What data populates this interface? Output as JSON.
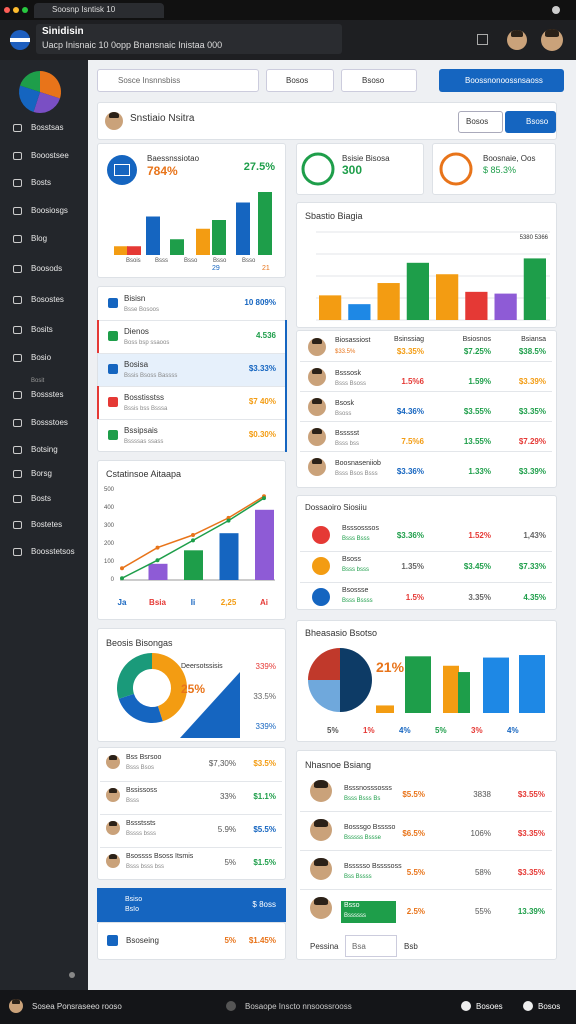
{
  "browser": {
    "tab": "Soosnp Isntisk 10"
  },
  "header": {
    "title": "Sinidisin",
    "subtitle": "Uacp Inisnaic 10 0opp Bnansnaic Inistaa 000"
  },
  "sidebar": {
    "items": [
      "Bosstsas",
      "Booostsee",
      "Bosts",
      "Boosiosgs",
      "Blog",
      "Boosods",
      "Bosostes",
      "Bosits",
      "Bosio",
      "Bossstes",
      "Bossstoes",
      "Botsing",
      "Borsg",
      "Bosts",
      "Bostetes",
      "Boosstetsos"
    ],
    "small": "Bosit"
  },
  "toolbar": {
    "search": "Sosce Insnnsbiss",
    "filter1": "Bosos",
    "filter2": "Bsoso",
    "button": "Boossnonoossnsaoss"
  },
  "profile": {
    "name": "Snstiaio Nsitra",
    "btn1": "Bosos",
    "btn2": "Bsoso"
  },
  "kpi": {
    "title": "Baessnssiotao",
    "value": "784%",
    "change": "27.5%",
    "ylim": [
      0,
      80
    ],
    "bars": [
      {
        "value": 10,
        "color": "#f39c12"
      },
      {
        "value": 10,
        "color": "#e53935"
      },
      {
        "value": 44,
        "color": "#1565c0"
      },
      {
        "value": 18,
        "color": "#1e9e4a"
      },
      {
        "value": 30,
        "color": "#f39c12"
      },
      {
        "value": 40,
        "color": "#1e9e4a"
      },
      {
        "value": 60,
        "color": "#1565c0"
      },
      {
        "value": 72,
        "color": "#1e9e4a"
      }
    ],
    "labels": [
      "Bsois",
      "Bsss",
      "Bsso",
      "Bsso",
      "Bsso"
    ],
    "foot1": "29",
    "foot2": "21"
  },
  "stat1": {
    "label": "Bsisie Bisosa",
    "value": "300"
  },
  "stat2": {
    "label": "Boosnaie, Oos",
    "value": "$ 85.3%"
  },
  "bar_chart": {
    "title": "Sbastio Biagia",
    "note": "5380 5366",
    "ylim": [
      0,
      100
    ],
    "yticks": [
      0,
      25,
      50,
      75,
      100
    ],
    "bars": [
      {
        "value": 28,
        "color": "#f39c12"
      },
      {
        "value": 18,
        "color": "#1e88e5"
      },
      {
        "value": 42,
        "color": "#f39c12"
      },
      {
        "value": 65,
        "color": "#1e9e4a"
      },
      {
        "value": 52,
        "color": "#f39c12"
      },
      {
        "value": 32,
        "color": "#e53935"
      },
      {
        "value": 30,
        "color": "#8e5bd6"
      },
      {
        "value": 70,
        "color": "#1e9e4a"
      }
    ]
  },
  "list1": {
    "rows": [
      {
        "name": "Bisisn",
        "sub": "Bsse Bosoos",
        "value": "10 809%",
        "color": "#1565c0",
        "vcolor": "#1565c0"
      },
      {
        "name": "Dienos",
        "sub": "Boss bsp ssaoos",
        "value": "4.536",
        "color": "#1e9e4a",
        "vcolor": "#1e9e4a"
      },
      {
        "name": "Bosisa",
        "sub": "Bssis Bsoss Bassss",
        "value": "$3.33%",
        "color": "#1565c0",
        "vcolor": "#1565c0"
      },
      {
        "name": "Bosstisstss",
        "sub": "Bssis bss Bsssa",
        "value": "$7 40%",
        "color": "#e53935",
        "vcolor": "#f39c12"
      },
      {
        "name": "Bssipsais",
        "sub": "Bssssas ssass",
        "value": "$0.30%",
        "color": "#1e9e4a",
        "vcolor": "#f39c12"
      }
    ]
  },
  "table": {
    "columns": [
      "Bsinssiag",
      "Bsiosnos",
      "Bsiansa"
    ],
    "rows": [
      {
        "name": "Biosassiost",
        "sub": "$33.5%",
        "values": [
          "$3.35%",
          "$7.25%",
          "$38.5%"
        ],
        "colors": [
          "#f39c12",
          "#1e9e4a",
          "#1e9e4a"
        ]
      },
      {
        "name": "Bsssosk",
        "sub": "Bsss Bsoss",
        "values": [
          "1.5%6",
          "1.59%",
          "$3.39%"
        ],
        "colors": [
          "#e53935",
          "#1e9e4a",
          "#f39c12"
        ]
      },
      {
        "name": "Bsosk",
        "sub": "Bsoss",
        "values": [
          "$4.36%",
          "$3.55%",
          "$3.35%"
        ],
        "colors": [
          "#1565c0",
          "#1e9e4a",
          "#1e9e4a"
        ]
      },
      {
        "name": "Bssssst",
        "sub": "Bsss bss",
        "values": [
          "7.5%6",
          "13.55%",
          "$7.29%"
        ],
        "colors": [
          "#f39c12",
          "#1e9e4a",
          "#e53935"
        ]
      },
      {
        "name": "Boosnaseniiob",
        "sub": "Bsss Bsos Bsss",
        "values": [
          "$3.36%",
          "1.33%",
          "$3.39%"
        ],
        "colors": [
          "#1565c0",
          "#1e9e4a",
          "#1e9e4a"
        ]
      }
    ]
  },
  "combo": {
    "title": "Cstatinsoe Aitaapa",
    "ylim": [
      0,
      500
    ],
    "yticks": [
      0,
      100,
      200,
      300,
      400,
      500
    ],
    "categories": [
      "Ja",
      "Bsia",
      "Ii",
      "2,25",
      "Ai"
    ],
    "label_colors": [
      "#1565c0",
      "#e53935",
      "#1565c0",
      "#f39c12",
      "#e53935"
    ],
    "bars": [
      null,
      90,
      165,
      260,
      390
    ],
    "bar_colors": [
      "#8e5bd6",
      "#8e5bd6",
      "#1e9e4a",
      "#1565c0",
      "#8e5bd6"
    ],
    "lines": [
      {
        "color": "#e8741a",
        "values": [
          65,
          180,
          250,
          345,
          465
        ]
      },
      {
        "color": "#1e9e4a",
        "values": [
          10,
          110,
          220,
          330,
          455
        ]
      }
    ]
  },
  "list2": {
    "title": "Dossaoiro Siosiiu",
    "rows": [
      {
        "name": "Bsssosssos",
        "sub": "Bsss Bsss",
        "color": "#e53935",
        "values": [
          "$3.36%",
          "1.52%",
          "1,43%"
        ],
        "colors": [
          "#1e9e4a",
          "#e53935",
          "#666666"
        ]
      },
      {
        "name": "Bsoss",
        "sub": "Bsss bsss",
        "color": "#f39c12",
        "values": [
          "1.35%",
          "$3.45%",
          "$7.33%"
        ],
        "colors": [
          "#666666",
          "#1e9e4a",
          "#1e9e4a"
        ]
      },
      {
        "name": "Bsossse",
        "sub": "Bsss Bssss",
        "color": "#1565c0",
        "values": [
          "1.5%",
          "3.35%",
          "4.35%"
        ],
        "colors": [
          "#e53935",
          "#666666",
          "#1e9e4a"
        ]
      }
    ]
  },
  "donut": {
    "title": "Beosis Bisongas",
    "label": "Deersotssisis",
    "value": "25%",
    "segments": [
      {
        "value": 45,
        "color": "#f39c12"
      },
      {
        "value": 25,
        "color": "#1565c0"
      },
      {
        "value": 30,
        "color": "#1a9a7a"
      }
    ],
    "side": [
      {
        "text": "339%",
        "color": "#e53935"
      },
      {
        "text": "33.5%",
        "color": "#666666"
      },
      {
        "text": "339%",
        "color": "#1565c0"
      }
    ]
  },
  "mixed": {
    "title": "Bheasasio Bsotso",
    "value": "21%",
    "ylim": [
      0,
      100
    ],
    "pie": [
      {
        "value": 50,
        "color": "#0d3b66"
      },
      {
        "value": 25,
        "color": "#6fa8dc"
      },
      {
        "value": 25,
        "color": "#c0392b"
      }
    ],
    "bars": [
      {
        "value": 12,
        "color": "#f39c12"
      },
      {
        "value": 90,
        "color": "#1e9e4a"
      },
      {
        "value": 75,
        "color": "#f39c12"
      },
      {
        "value": 65,
        "color": "#1e9e4a"
      },
      {
        "value": 88,
        "color": "#1e88e5"
      },
      {
        "value": 92,
        "color": "#1e88e5"
      }
    ],
    "labels": [
      "5%",
      "1%",
      "4%",
      "5%",
      "3%",
      "4%"
    ]
  },
  "list3": {
    "rows": [
      {
        "name": "Bss Bsrsoo",
        "sub": "Bsss Bsos",
        "v1": "$7,30%",
        "v2": "$3.5%",
        "color": "#f39c12"
      },
      {
        "name": "Bssissoss",
        "sub": "Bsss",
        "v1": "33%",
        "v2": "$1.1%",
        "color": "#1e9e4a"
      },
      {
        "name": "Bssstssts",
        "sub": "Bssss bsss",
        "v1": "5.9%",
        "v2": "$5.5%",
        "color": "#1565c0"
      },
      {
        "name": "Bsossss Bsoss Itsmis",
        "sub": "Bsss bsss bss",
        "v1": "5%",
        "v2": "$1.5%",
        "color": "#1e9e4a"
      }
    ]
  },
  "banner": {
    "title": "Bsiso",
    "sub": "BsIo",
    "value": "$ 8oss"
  },
  "footrow": {
    "name": "Bsoseing",
    "v1": "5%",
    "v2": "$1.45%"
  },
  "list4": {
    "title": "Nhasnoe Bsiang",
    "rows": [
      {
        "name": "Bsssnosssosss",
        "sub": "Bsss Bsss Bs",
        "v1": "$5.5%",
        "v2": "3838",
        "v3": "$3.55%"
      },
      {
        "name": "Bosssgo Bsssso",
        "sub": "Bsssss Bssse",
        "v1": "$6.5%",
        "v2": "106%",
        "v3": "$3.35%"
      },
      {
        "name": "Bssssso Bssssoss",
        "sub": "Bss Bssss",
        "v1": "5.5%",
        "v2": "58%",
        "v3": "$3.35%"
      },
      {
        "name": "Bsso",
        "sub": "Bssssss",
        "v1": "2.5%",
        "v2": "55%",
        "v3": "13.39%"
      }
    ],
    "pager": "Pessina",
    "input": "Bsa",
    "next": "Bsb"
  },
  "footer": {
    "user": "Sosea Ponsraseeo rooso",
    "center": "Bosaope Inscto nnsoossrooss",
    "right1": "Bosoes",
    "right2": "Bosos"
  }
}
